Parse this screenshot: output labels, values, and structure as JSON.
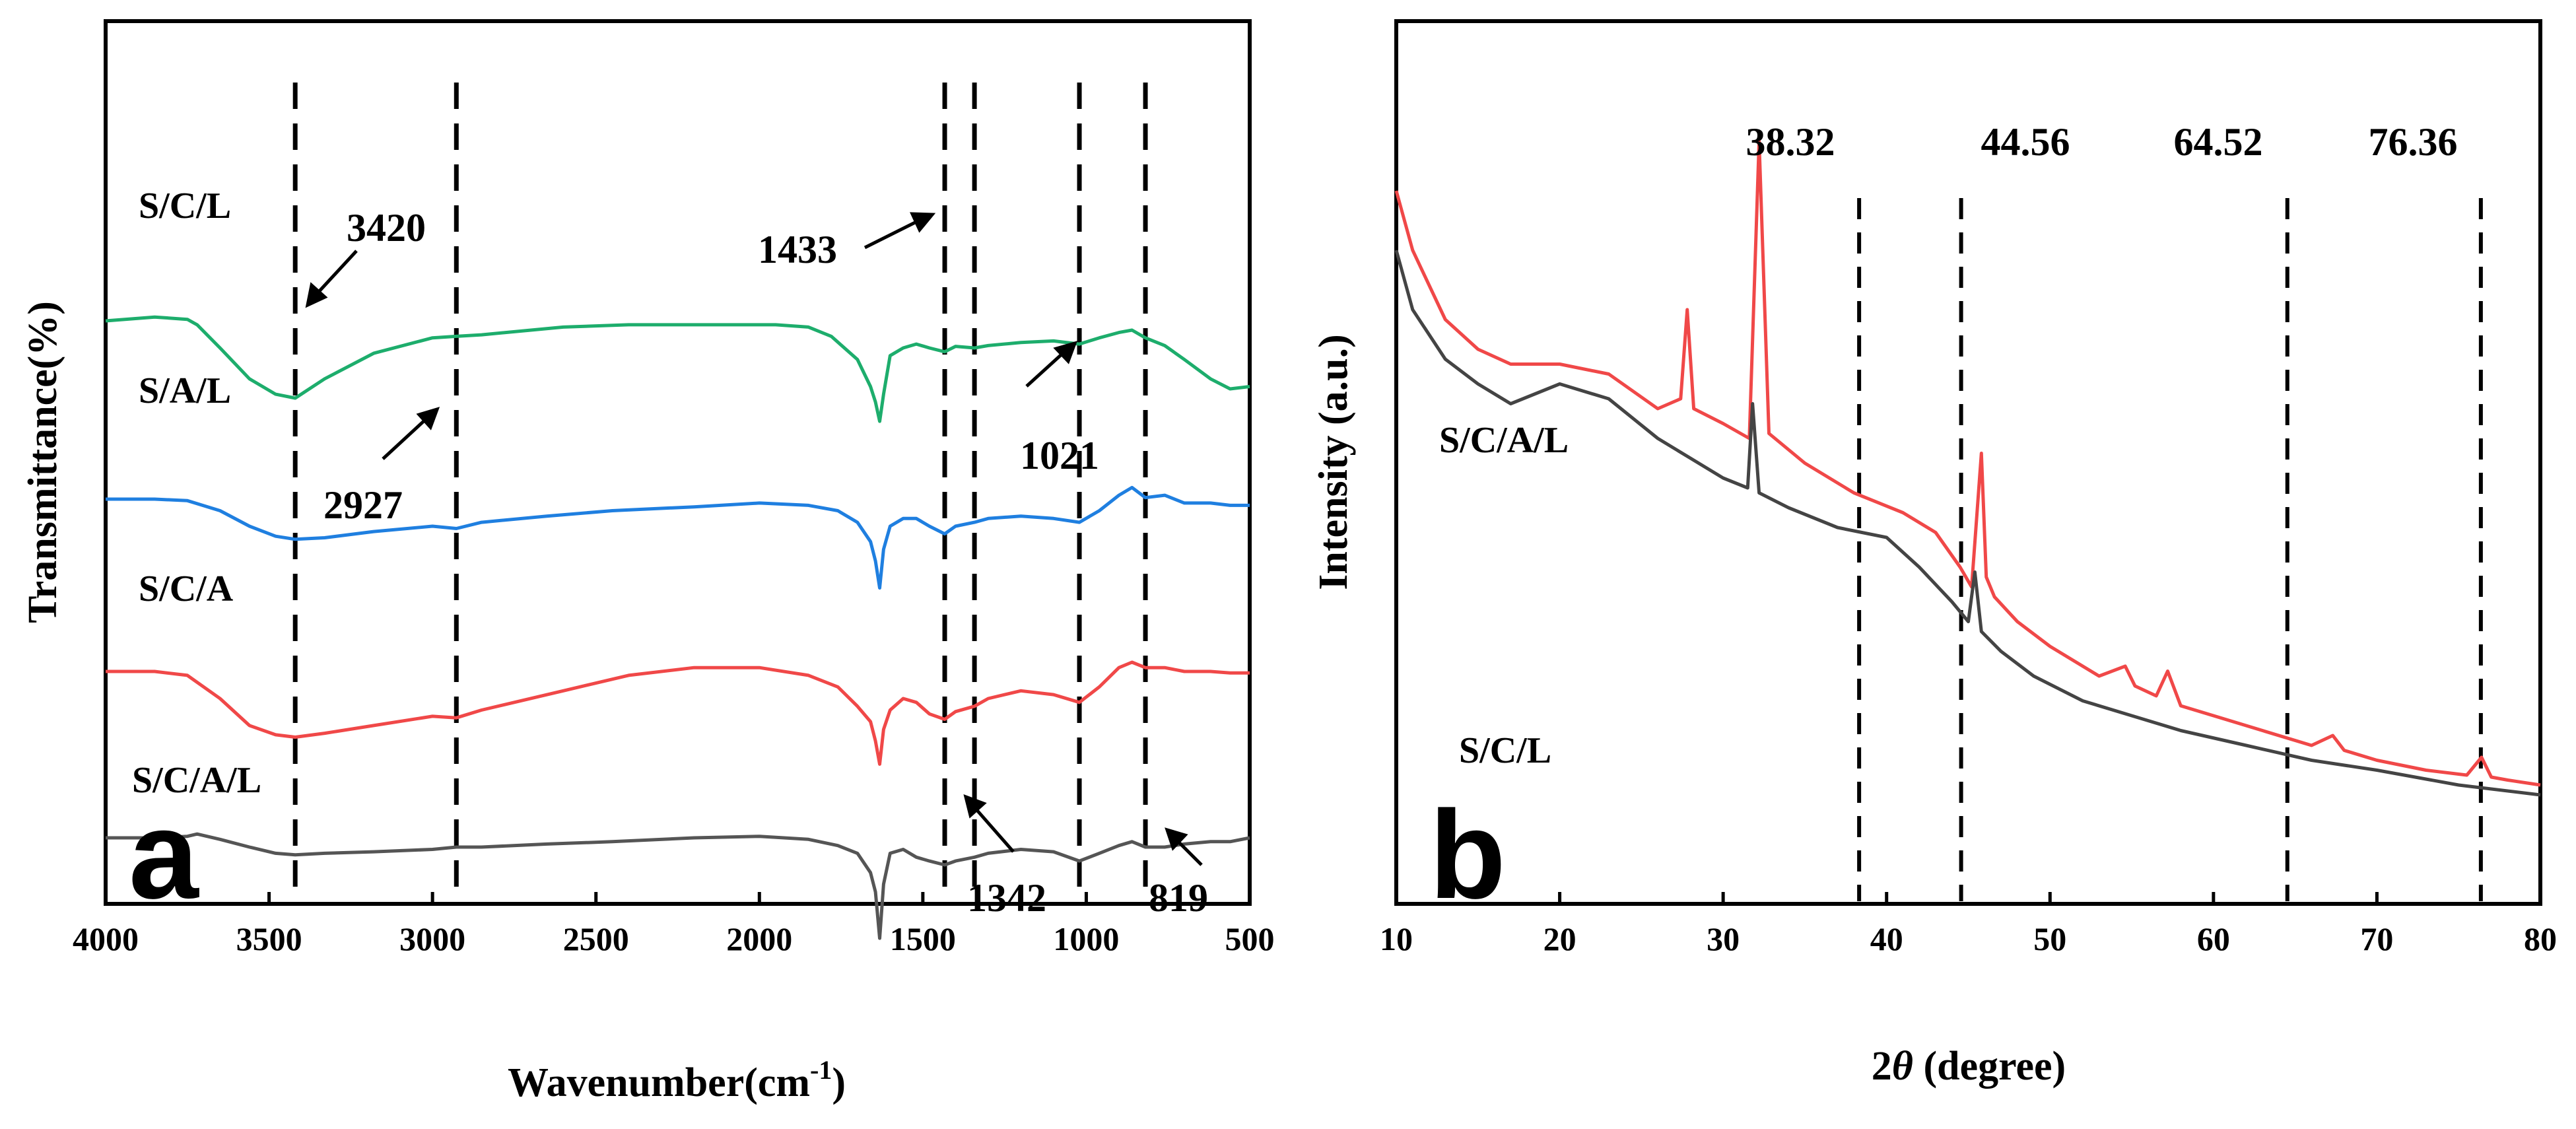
{
  "chart_data": [
    {
      "type": "line",
      "panel": "a",
      "xlabel": "Wavenumber(cm",
      "xlabel_sup": "-1",
      "xlabel_close": ")",
      "ylabel": "Transmittance(%)",
      "xlim": [
        4000,
        500
      ],
      "x_reversed": true,
      "xticks": [
        "4000",
        "3500",
        "3000",
        "2500",
        "2000",
        "1500",
        "1000",
        "500"
      ],
      "y_units": "relative transmittance (stacked, no tick labels); each series offset for display",
      "reference_lines": [
        3420,
        2927,
        1433,
        1342,
        1021,
        819
      ],
      "annotations": [
        {
          "text": "3420",
          "x": 3420
        },
        {
          "text": "2927",
          "x": 2927
        },
        {
          "text": "1433",
          "x": 1433
        },
        {
          "text": "1342",
          "x": 1342
        },
        {
          "text": "1021",
          "x": 1021
        },
        {
          "text": "819",
          "x": 819
        }
      ],
      "series": [
        {
          "name": "S/C/L",
          "color": "#1dad6c",
          "offset": 9.2,
          "amplitude": 1.3,
          "x": [
            4000,
            3850,
            3750,
            3720,
            3650,
            3560,
            3480,
            3420,
            3330,
            3180,
            3000,
            2927,
            2850,
            2600,
            2400,
            2150,
            1950,
            1850,
            1780,
            1700,
            1660,
            1645,
            1632,
            1620,
            1600,
            1560,
            1520,
            1480,
            1433,
            1400,
            1342,
            1300,
            1200,
            1100,
            1021,
            960,
            900,
            860,
            819,
            760,
            700,
            620,
            560,
            500
          ],
          "y": [
            0,
            0.05,
            0.02,
            -0.05,
            -0.35,
            -0.75,
            -0.95,
            -1.0,
            -0.75,
            -0.42,
            -0.22,
            -0.2,
            -0.18,
            -0.08,
            -0.05,
            -0.05,
            -0.05,
            -0.08,
            -0.2,
            -0.5,
            -0.85,
            -1.05,
            -1.3,
            -0.95,
            -0.45,
            -0.35,
            -0.3,
            -0.35,
            -0.4,
            -0.33,
            -0.35,
            -0.32,
            -0.28,
            -0.26,
            -0.3,
            -0.22,
            -0.15,
            -0.12,
            -0.22,
            -0.32,
            -0.5,
            -0.75,
            -0.88,
            -0.85
          ]
        },
        {
          "name": "S/A/L",
          "color": "#1f7fe0",
          "offset": 6.2,
          "amplitude": 1.3,
          "x": [
            4000,
            3850,
            3750,
            3650,
            3560,
            3480,
            3420,
            3330,
            3180,
            3000,
            2927,
            2850,
            2650,
            2450,
            2200,
            2000,
            1850,
            1760,
            1700,
            1660,
            1645,
            1632,
            1620,
            1600,
            1560,
            1520,
            1480,
            1433,
            1400,
            1342,
            1300,
            1200,
            1100,
            1021,
            960,
            900,
            860,
            819,
            760,
            700,
            620,
            560,
            500
          ],
          "y": [
            0,
            0,
            -0.02,
            -0.15,
            -0.35,
            -0.48,
            -0.52,
            -0.5,
            -0.42,
            -0.35,
            -0.38,
            -0.3,
            -0.22,
            -0.15,
            -0.1,
            -0.05,
            -0.08,
            -0.15,
            -0.3,
            -0.55,
            -0.8,
            -1.15,
            -0.65,
            -0.35,
            -0.25,
            -0.25,
            -0.35,
            -0.45,
            -0.35,
            -0.3,
            -0.25,
            -0.22,
            -0.25,
            -0.3,
            -0.15,
            0.05,
            0.15,
            0.02,
            0.05,
            -0.05,
            -0.05,
            -0.08,
            -0.08
          ]
        },
        {
          "name": "S/C/A",
          "color": "#f04848",
          "offset": 3.3,
          "amplitude": 1.3,
          "x": [
            4000,
            3850,
            3750,
            3650,
            3560,
            3480,
            3420,
            3330,
            3180,
            3000,
            2927,
            2850,
            2600,
            2400,
            2200,
            2000,
            1850,
            1760,
            1700,
            1660,
            1645,
            1632,
            1620,
            1600,
            1560,
            1520,
            1480,
            1433,
            1400,
            1342,
            1300,
            1200,
            1100,
            1021,
            960,
            900,
            860,
            819,
            760,
            700,
            620,
            560,
            500
          ],
          "y": [
            0,
            0,
            -0.05,
            -0.35,
            -0.7,
            -0.82,
            -0.85,
            -0.8,
            -0.7,
            -0.58,
            -0.6,
            -0.5,
            -0.25,
            -0.05,
            0.05,
            0.05,
            -0.05,
            -0.2,
            -0.45,
            -0.65,
            -0.9,
            -1.2,
            -0.75,
            -0.5,
            -0.35,
            -0.4,
            -0.55,
            -0.62,
            -0.52,
            -0.45,
            -0.35,
            -0.25,
            -0.3,
            -0.4,
            -0.2,
            0.05,
            0.12,
            0.05,
            0.05,
            0,
            0,
            -0.02,
            -0.02
          ]
        },
        {
          "name": "S/C/A/L",
          "color": "#555555",
          "offset": 0.5,
          "amplitude": 1.3,
          "x": [
            4000,
            3850,
            3750,
            3720,
            3650,
            3560,
            3480,
            3420,
            3330,
            3180,
            3000,
            2927,
            2850,
            2650,
            2450,
            2200,
            2000,
            1850,
            1760,
            1700,
            1660,
            1645,
            1632,
            1620,
            1600,
            1560,
            1520,
            1480,
            1433,
            1400,
            1342,
            1300,
            1200,
            1100,
            1021,
            960,
            900,
            860,
            819,
            760,
            700,
            620,
            560,
            500
          ],
          "y": [
            0,
            0,
            0.02,
            0.05,
            -0.02,
            -0.12,
            -0.2,
            -0.22,
            -0.2,
            -0.18,
            -0.15,
            -0.12,
            -0.12,
            -0.08,
            -0.05,
            0,
            0.02,
            -0.02,
            -0.1,
            -0.2,
            -0.45,
            -0.7,
            -1.3,
            -0.6,
            -0.2,
            -0.15,
            -0.25,
            -0.3,
            -0.35,
            -0.3,
            -0.25,
            -0.2,
            -0.15,
            -0.18,
            -0.3,
            -0.2,
            -0.1,
            -0.05,
            -0.12,
            -0.12,
            -0.08,
            -0.05,
            -0.05,
            0
          ]
        }
      ]
    },
    {
      "type": "line",
      "panel": "b",
      "xlabel_prefix": "2",
      "xlabel_theta": "θ",
      "xlabel_suffix": " (degree)",
      "ylabel": "Intensity (a.u.)",
      "xlim": [
        10,
        80
      ],
      "xticks": [
        "10",
        "20",
        "30",
        "40",
        "50",
        "60",
        "70",
        "80"
      ],
      "reference_lines": [
        38.32,
        44.56,
        64.52,
        76.36
      ],
      "annotations": [
        {
          "text": "38.32",
          "x": 38.32
        },
        {
          "text": "44.56",
          "x": 44.56
        },
        {
          "text": "64.52",
          "x": 64.52
        },
        {
          "text": "76.36",
          "x": 76.36
        }
      ],
      "y_units": "relative intensity (no tick labels)",
      "series": [
        {
          "name": "S/C/A/L",
          "color": "#f04848",
          "x": [
            10,
            11,
            13,
            15,
            17,
            20,
            23,
            26,
            27.4,
            27.8,
            28.2,
            30,
            31.6,
            32.2,
            32.8,
            35,
            38,
            41,
            43,
            44.5,
            45.2,
            45.8,
            46.1,
            46.6,
            48,
            50,
            53,
            54.6,
            55.2,
            56.5,
            57.2,
            58,
            60,
            63,
            66,
            67.3,
            68,
            70,
            73,
            75.5,
            76.4,
            77,
            78,
            80
          ],
          "y": [
            7.2,
            6.6,
            5.9,
            5.6,
            5.45,
            5.45,
            5.35,
            5.0,
            5.1,
            6.0,
            5.0,
            4.85,
            4.7,
            7.7,
            4.75,
            4.45,
            4.15,
            3.95,
            3.75,
            3.4,
            3.2,
            4.55,
            3.3,
            3.1,
            2.85,
            2.6,
            2.3,
            2.4,
            2.2,
            2.1,
            2.35,
            2.0,
            1.9,
            1.75,
            1.6,
            1.7,
            1.55,
            1.45,
            1.35,
            1.3,
            1.48,
            1.28,
            1.25,
            1.2
          ]
        },
        {
          "name": "S/C/L",
          "color": "#444444",
          "x": [
            10,
            11,
            13,
            15,
            17,
            20,
            23,
            26,
            28,
            30,
            31.5,
            31.8,
            32.2,
            34,
            37,
            40,
            42,
            44,
            45,
            45.4,
            45.8,
            47,
            49,
            52,
            55,
            58,
            62,
            66,
            70,
            75,
            80
          ],
          "y": [
            6.6,
            6.0,
            5.5,
            5.25,
            5.05,
            5.25,
            5.1,
            4.7,
            4.5,
            4.3,
            4.2,
            5.05,
            4.15,
            4.0,
            3.8,
            3.7,
            3.4,
            3.05,
            2.85,
            3.35,
            2.75,
            2.55,
            2.3,
            2.05,
            1.9,
            1.75,
            1.6,
            1.45,
            1.35,
            1.2,
            1.1
          ]
        }
      ]
    }
  ]
}
